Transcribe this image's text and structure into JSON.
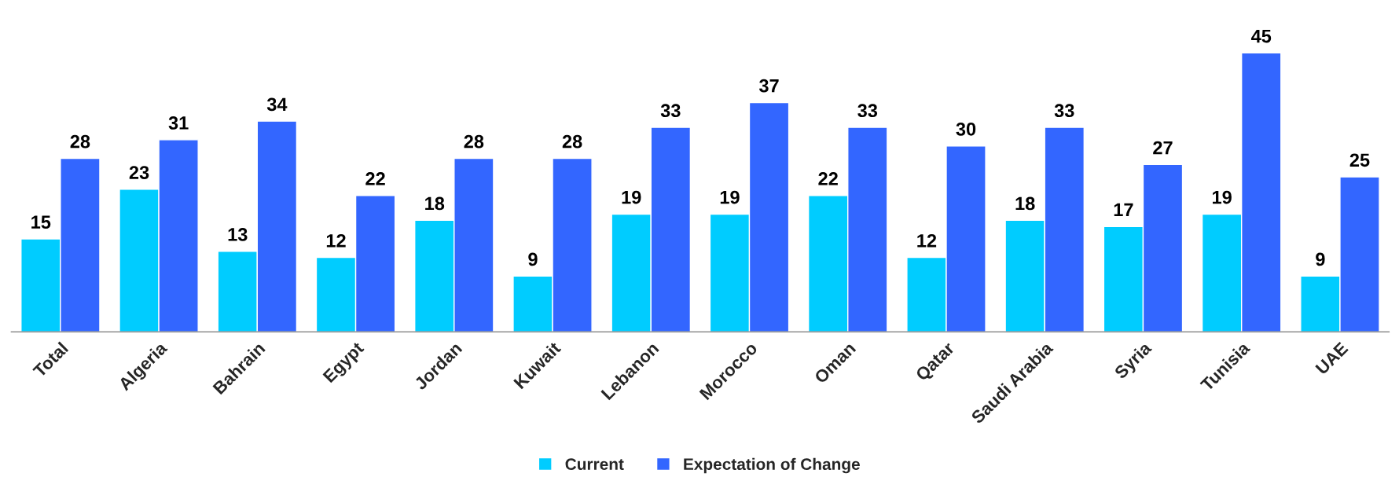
{
  "chart_data": {
    "type": "bar",
    "categories": [
      "Total",
      "Algeria",
      "Bahrain",
      "Egypt",
      "Jordan",
      "Kuwait",
      "Lebanon",
      "Morocco",
      "Oman",
      "Qatar",
      "Saudi Arabia",
      "Syria",
      "Tunisia",
      "UAE"
    ],
    "series": [
      {
        "name": "Current",
        "color": "#00ccff",
        "values": [
          15,
          23,
          13,
          12,
          18,
          9,
          19,
          19,
          22,
          12,
          18,
          17,
          19,
          9
        ]
      },
      {
        "name": "Expectation of Change",
        "color": "#3366ff",
        "values": [
          28,
          31,
          34,
          22,
          28,
          28,
          33,
          37,
          33,
          30,
          33,
          27,
          45,
          25
        ]
      }
    ],
    "data_labels": true,
    "grid": false,
    "legend": "bottom"
  }
}
